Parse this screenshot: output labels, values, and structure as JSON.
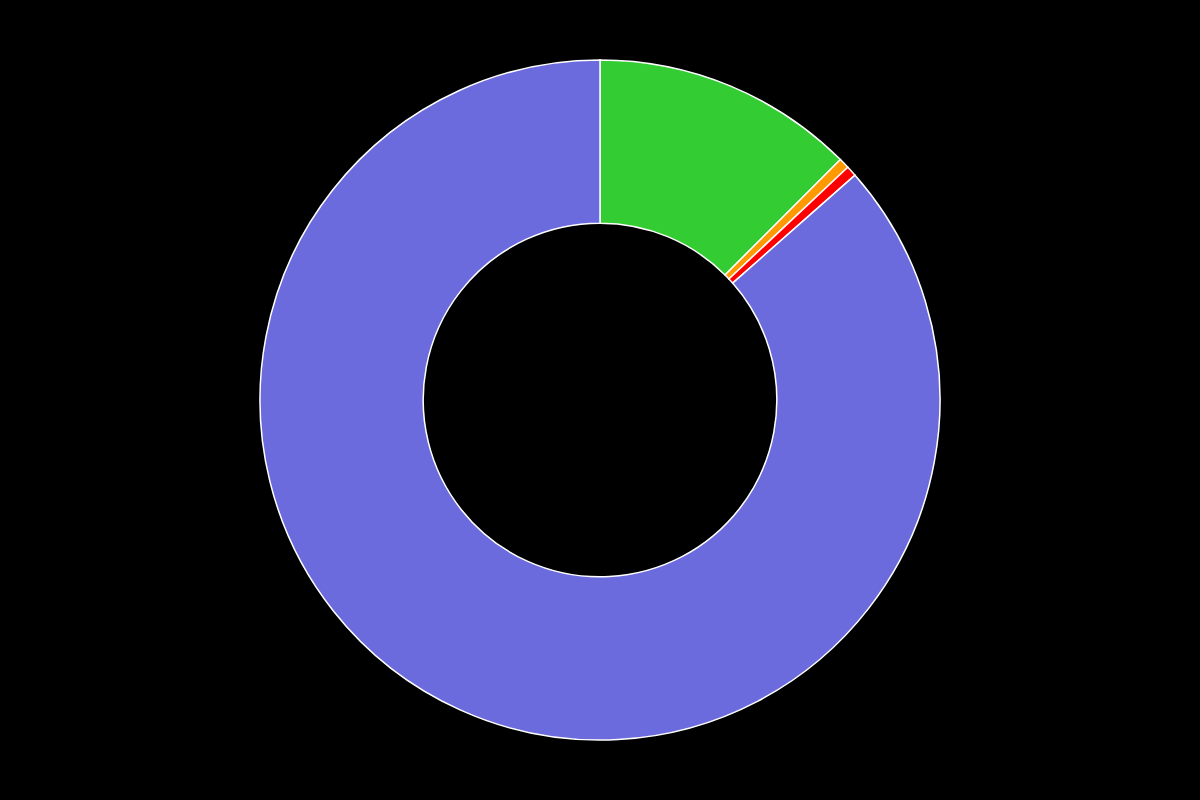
{
  "chart_data": {
    "type": "pie",
    "values": [
      12.5,
      0.5,
      0.5,
      86.5
    ],
    "colors": [
      "#33cc33",
      "#ff9900",
      "#ff0000",
      "#6b6bdd"
    ]
  }
}
